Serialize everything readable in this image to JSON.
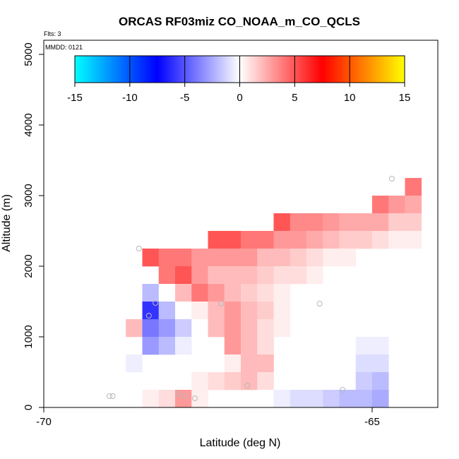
{
  "chart_data": {
    "type": "heatmap",
    "title": "ORCAS RF03miz CO_NOAA_m_CO_QCLS",
    "flts_label": "Flts: 3",
    "mmdd_label": "MMDD: 0121",
    "xlabel": "Latitude (deg N)",
    "ylabel": "Altitude (m)",
    "xlim": [
      -70,
      -64
    ],
    "ylim": [
      0,
      5200
    ],
    "xticks": [
      -70,
      -65
    ],
    "yticks": [
      0,
      1000,
      2000,
      3000,
      4000,
      5000
    ],
    "colorbar": {
      "ticks": [
        -15,
        -10,
        -5,
        0,
        5,
        10,
        15
      ],
      "range": [
        -15,
        15
      ],
      "colors": [
        "#00ffff",
        "#0000ff",
        "#ffffff",
        "#ff0000",
        "#ffff00"
      ]
    },
    "cell_size": {
      "dlat": 0.25,
      "dalt": 250
    },
    "cells": [
      [
        -64.5,
        3000,
        4
      ],
      [
        -65.0,
        2750,
        4
      ],
      [
        -64.75,
        2750,
        3
      ],
      [
        -64.5,
        2750,
        2.5
      ],
      [
        -66.5,
        2500,
        5
      ],
      [
        -66.25,
        2500,
        3.5
      ],
      [
        -66.0,
        2500,
        3.5
      ],
      [
        -65.75,
        2500,
        3
      ],
      [
        -65.5,
        2500,
        2.5
      ],
      [
        -65.25,
        2500,
        2.5
      ],
      [
        -65.0,
        2500,
        2.5
      ],
      [
        -64.75,
        2500,
        1.5
      ],
      [
        -64.5,
        2500,
        1.5
      ],
      [
        -67.5,
        2250,
        5
      ],
      [
        -67.25,
        2250,
        5
      ],
      [
        -67.0,
        2250,
        4
      ],
      [
        -66.75,
        2250,
        4
      ],
      [
        -66.5,
        2250,
        3
      ],
      [
        -66.25,
        2250,
        3
      ],
      [
        -66.0,
        2250,
        2.5
      ],
      [
        -65.75,
        2250,
        2
      ],
      [
        -65.5,
        2250,
        1.5
      ],
      [
        -65.25,
        2250,
        1.5
      ],
      [
        -65.0,
        2250,
        1
      ],
      [
        -64.75,
        2250,
        0.5
      ],
      [
        -64.5,
        2250,
        0.5
      ],
      [
        -68.5,
        2000,
        5
      ],
      [
        -68.25,
        2000,
        4
      ],
      [
        -68.0,
        2000,
        4
      ],
      [
        -67.75,
        2000,
        3
      ],
      [
        -67.5,
        2000,
        3
      ],
      [
        -67.25,
        2000,
        3
      ],
      [
        -67.0,
        2000,
        3
      ],
      [
        -66.75,
        2000,
        2
      ],
      [
        -66.5,
        2000,
        2
      ],
      [
        -66.25,
        2000,
        1.5
      ],
      [
        -66.0,
        2000,
        1
      ],
      [
        -65.75,
        2000,
        0.5
      ],
      [
        -65.5,
        2000,
        0.5
      ],
      [
        -68.25,
        1750,
        4
      ],
      [
        -68.0,
        1750,
        5
      ],
      [
        -67.75,
        1750,
        3
      ],
      [
        -67.5,
        1750,
        2
      ],
      [
        -67.25,
        1750,
        2
      ],
      [
        -67.0,
        1750,
        2
      ],
      [
        -66.75,
        1750,
        1.5
      ],
      [
        -66.5,
        1750,
        1
      ],
      [
        -66.25,
        1750,
        1
      ],
      [
        -66.0,
        1750,
        0.5
      ],
      [
        -68.5,
        1500,
        -2
      ],
      [
        -68.25,
        1500,
        0
      ],
      [
        -68.0,
        1500,
        2
      ],
      [
        -67.75,
        1500,
        4
      ],
      [
        -67.5,
        1500,
        3
      ],
      [
        -67.25,
        1500,
        2
      ],
      [
        -67.0,
        1500,
        1.5
      ],
      [
        -66.75,
        1500,
        1
      ],
      [
        -66.5,
        1500,
        0.5
      ],
      [
        -68.5,
        1250,
        -6
      ],
      [
        -68.25,
        1250,
        -2
      ],
      [
        -68.0,
        1250,
        0
      ],
      [
        -67.75,
        1250,
        0.5
      ],
      [
        -67.5,
        1250,
        2
      ],
      [
        -67.25,
        1250,
        3
      ],
      [
        -67.0,
        1250,
        2
      ],
      [
        -66.75,
        1250,
        1.5
      ],
      [
        -66.5,
        1250,
        0.5
      ],
      [
        -68.75,
        1000,
        2
      ],
      [
        -68.5,
        1000,
        -4
      ],
      [
        -68.25,
        1000,
        -3
      ],
      [
        -68.0,
        1000,
        -1.5
      ],
      [
        -67.75,
        1000,
        0
      ],
      [
        -67.5,
        1000,
        2
      ],
      [
        -67.25,
        1000,
        3
      ],
      [
        -67.0,
        1000,
        2
      ],
      [
        -66.75,
        1000,
        1
      ],
      [
        -66.5,
        1000,
        0.5
      ],
      [
        -68.5,
        750,
        -3
      ],
      [
        -68.25,
        750,
        -2
      ],
      [
        -68.0,
        750,
        -0.5
      ],
      [
        -67.25,
        750,
        3
      ],
      [
        -67.0,
        750,
        2
      ],
      [
        -66.75,
        750,
        1
      ],
      [
        -65.25,
        750,
        -0.5
      ],
      [
        -65.0,
        750,
        -0.5
      ],
      [
        -68.75,
        500,
        -0.5
      ],
      [
        -67.25,
        500,
        0.5
      ],
      [
        -67.0,
        500,
        2
      ],
      [
        -66.75,
        500,
        2
      ],
      [
        -65.25,
        500,
        -1
      ],
      [
        -65.0,
        500,
        -1
      ],
      [
        -67.75,
        250,
        0.5
      ],
      [
        -67.5,
        250,
        1
      ],
      [
        -67.25,
        250,
        1.5
      ],
      [
        -67.0,
        250,
        2
      ],
      [
        -66.75,
        250,
        1
      ],
      [
        -65.25,
        250,
        -1.5
      ],
      [
        -65.0,
        250,
        -2
      ],
      [
        -68.5,
        0,
        0.5
      ],
      [
        -68.25,
        0,
        1
      ],
      [
        -68.0,
        0,
        3
      ],
      [
        -67.75,
        0,
        0.5
      ],
      [
        -66.75,
        0,
        0
      ],
      [
        -66.5,
        0,
        -0.5
      ],
      [
        -66.25,
        0,
        -1
      ],
      [
        -66.0,
        0,
        -1
      ],
      [
        -65.75,
        0,
        -1.5
      ],
      [
        -65.5,
        0,
        -2
      ],
      [
        -65.25,
        0,
        -2
      ],
      [
        -65.0,
        0,
        -2.5
      ]
    ],
    "points": [
      [
        -64.7,
        3240
      ],
      [
        -68.55,
        2250
      ],
      [
        -68.3,
        1480
      ],
      [
        -68.4,
        1300
      ],
      [
        -67.3,
        1470
      ],
      [
        -65.8,
        1470
      ],
      [
        -69.0,
        160
      ],
      [
        -68.95,
        160
      ],
      [
        -67.95,
        190
      ],
      [
        -67.85,
        160
      ],
      [
        -67.7,
        130
      ],
      [
        -66.9,
        310
      ],
      [
        -65.45,
        250
      ]
    ]
  }
}
